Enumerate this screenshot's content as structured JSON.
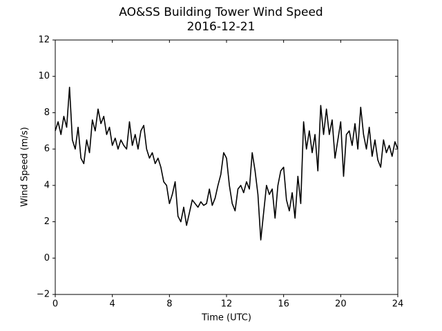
{
  "chart_data": {
    "type": "line",
    "title": "AO&SS Building Tower Wind Speed",
    "subtitle": "2016-12-21",
    "x_label": "Time (UTC)",
    "y_label": "Wind Speed (m/s)",
    "x": [
      0,
      0.2,
      0.4,
      0.6,
      0.8,
      1,
      1.2,
      1.4,
      1.6,
      1.8,
      2,
      2.2,
      2.4,
      2.6,
      2.8,
      3,
      3.2,
      3.4,
      3.6,
      3.8,
      4,
      4.2,
      4.4,
      4.6,
      4.8,
      5,
      5.2,
      5.4,
      5.6,
      5.8,
      6,
      6.2,
      6.4,
      6.6,
      6.8,
      7,
      7.2,
      7.4,
      7.6,
      7.8,
      8,
      8.2,
      8.4,
      8.6,
      8.8,
      9,
      9.2,
      9.4,
      9.6,
      9.8,
      10,
      10.2,
      10.4,
      10.6,
      10.8,
      11,
      11.2,
      11.4,
      11.6,
      11.8,
      12,
      12.2,
      12.4,
      12.6,
      12.8,
      13,
      13.2,
      13.4,
      13.6,
      13.8,
      14,
      14.2,
      14.4,
      14.6,
      14.8,
      15,
      15.2,
      15.4,
      15.6,
      15.8,
      16,
      16.2,
      16.4,
      16.6,
      16.8,
      17,
      17.2,
      17.4,
      17.6,
      17.8,
      18,
      18.2,
      18.4,
      18.6,
      18.8,
      19,
      19.2,
      19.4,
      19.6,
      19.8,
      20,
      20.2,
      20.4,
      20.6,
      20.8,
      21,
      21.2,
      21.4,
      21.6,
      21.8,
      22,
      22.2,
      22.4,
      22.6,
      22.8,
      23,
      23.2,
      23.4,
      23.6,
      23.8,
      24
    ],
    "series": [
      {
        "name": "Wind Speed",
        "color": "#000000",
        "values": [
          7.0,
          7.5,
          6.8,
          7.8,
          7.2,
          9.4,
          6.5,
          6.0,
          7.2,
          5.5,
          5.2,
          6.5,
          5.8,
          7.6,
          7.0,
          8.2,
          7.4,
          7.8,
          6.8,
          7.2,
          6.2,
          6.6,
          6.0,
          6.5,
          6.2,
          6.0,
          7.5,
          6.2,
          6.8,
          6.0,
          7.0,
          7.3,
          6.0,
          5.5,
          5.8,
          5.2,
          5.5,
          5.0,
          4.2,
          4.0,
          3.0,
          3.5,
          4.2,
          2.3,
          2.0,
          2.8,
          1.8,
          2.5,
          3.2,
          3.0,
          2.8,
          3.1,
          2.9,
          3.0,
          3.8,
          2.9,
          3.3,
          4.0,
          4.6,
          5.8,
          5.5,
          4.0,
          3.0,
          2.6,
          3.8,
          4.0,
          3.6,
          4.2,
          3.8,
          5.8,
          4.8,
          3.5,
          1.0,
          2.5,
          4.0,
          3.5,
          3.8,
          2.2,
          4.0,
          4.8,
          5.0,
          3.2,
          2.6,
          3.6,
          2.2,
          4.5,
          3.0,
          7.5,
          6.0,
          7.0,
          5.8,
          6.8,
          4.8,
          8.4,
          6.8,
          8.2,
          6.8,
          7.6,
          5.5,
          6.5,
          7.5,
          4.5,
          6.8,
          7.0,
          6.2,
          7.4,
          6.0,
          8.3,
          6.8,
          6.0,
          7.2,
          5.6,
          6.5,
          5.4,
          5.0,
          6.5,
          5.8,
          6.2,
          5.6,
          6.4,
          6.0
        ]
      }
    ],
    "xlim": [
      0,
      24
    ],
    "xticks": [
      0,
      4,
      8,
      12,
      16,
      20,
      24
    ],
    "ylim": [
      -2,
      12
    ],
    "yticks": [
      {
        "value": -2,
        "label": "−2"
      },
      0,
      2,
      4,
      6,
      8,
      10,
      12
    ],
    "grid": false
  }
}
